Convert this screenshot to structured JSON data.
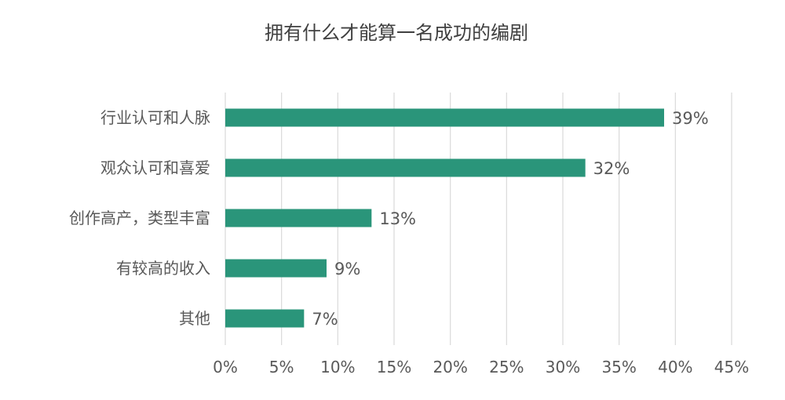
{
  "chart_data": {
    "type": "bar",
    "orientation": "horizontal",
    "title": "拥有什么才能算一名成功的编剧",
    "categories": [
      "行业认可和人脉",
      "观众认可和喜爱",
      "创作高产，类型丰富",
      "有较高的收入",
      "其他"
    ],
    "values": [
      39,
      32,
      13,
      9,
      7
    ],
    "value_labels": [
      "39%",
      "32%",
      "13%",
      "9%",
      "7%"
    ],
    "xlim": [
      0,
      45
    ],
    "xticks": [
      0,
      5,
      10,
      15,
      20,
      25,
      30,
      35,
      40,
      45
    ],
    "xtick_labels": [
      "0%",
      "5%",
      "10%",
      "15%",
      "20%",
      "25%",
      "30%",
      "35%",
      "40%",
      "45%"
    ],
    "grid": "vertical",
    "bar_color": "#2a957a",
    "grid_color": "#d9d9d9",
    "text_color": "#595959",
    "title_color": "#404040",
    "legend": "none"
  }
}
